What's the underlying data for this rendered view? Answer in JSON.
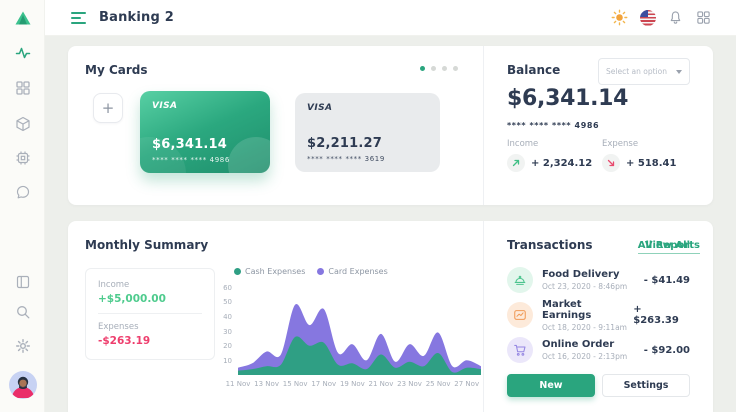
{
  "app": {
    "title": "Banking 2"
  },
  "header": {
    "icons": [
      "theme-sun-icon",
      "language-flag-us-icon",
      "notifications-bell-icon",
      "apps-grid-icon"
    ]
  },
  "sidebar": {
    "items": [
      "activity",
      "dashboard",
      "packages",
      "devices",
      "messages",
      "layout",
      "search",
      "settings",
      "profile-avatar"
    ],
    "active_item": "activity"
  },
  "my_cards": {
    "title": "My Cards",
    "pagination": {
      "count": 4,
      "active_index": 0
    },
    "add_card_label": "+",
    "cards": [
      {
        "brand": "VISA",
        "amount": "$6,341.14",
        "masked_number": "**** **** **** 4986",
        "variant": "green"
      },
      {
        "brand": "VISA",
        "amount": "$2,211.27",
        "masked_number": "**** **** **** 3619",
        "variant": "gray"
      }
    ]
  },
  "balance": {
    "title": "Balance",
    "select_placeholder": "Select an option",
    "amount": "$6,341.14",
    "masked_number": "**** **** **** 4986",
    "income": {
      "label": "Income",
      "value": "+ 2,324.12"
    },
    "expense": {
      "label": "Expense",
      "value": "+ 518.41"
    }
  },
  "monthly_summary": {
    "title": "Monthly Summary",
    "link_label": "All Reports",
    "income": {
      "label": "Income",
      "value": "+$5,000.00",
      "color": "#4ecb8d"
    },
    "expenses": {
      "label": "Expenses",
      "value": "-$263.19",
      "color": "#ee3e6d"
    }
  },
  "chart_data": {
    "type": "area",
    "stacked": true,
    "title": "Monthly Summary expenses by day",
    "x_tick_labels": [
      "11 Nov",
      "13 Nov",
      "15 Nov",
      "17 Nov",
      "19 Nov",
      "21 Nov",
      "23 Nov",
      "25 Nov",
      "27 Nov"
    ],
    "n_points": 18,
    "series": [
      {
        "name": "Cash Expenses",
        "color": "#2f9f84",
        "values": [
          3,
          4,
          6,
          7,
          26,
          20,
          22,
          7,
          8,
          4,
          14,
          5,
          9,
          6,
          15,
          2,
          5,
          4
        ]
      },
      {
        "name": "Card Expenses",
        "color": "#8677e0",
        "values": [
          2,
          4,
          10,
          7,
          22,
          14,
          23,
          8,
          13,
          6,
          14,
          4,
          12,
          7,
          14,
          4,
          5,
          2
        ]
      }
    ],
    "ylim": [
      0,
      60
    ],
    "yticks": [
      10,
      20,
      30,
      40,
      50,
      60
    ],
    "grid": false,
    "legend_position": "top"
  },
  "transactions": {
    "title": "Transactions",
    "link_label": "View All",
    "items": [
      {
        "icon": "food-cloche-icon",
        "name": "Food Delivery",
        "datetime": "Oct 23, 2020 - 8:46pm",
        "amount": "- $41.49",
        "icon_color": "#4cc48e",
        "icon_bg": "#e2f6ec"
      },
      {
        "icon": "earnings-chart-icon",
        "name": "Market Earnings",
        "datetime": "Oct 18, 2020 - 9:11am",
        "amount": "+ $263.39",
        "icon_color": "#f09a57",
        "icon_bg": "#fdeada"
      },
      {
        "icon": "shopping-cart-icon",
        "name": "Online Order",
        "datetime": "Oct 16, 2020 - 2:13pm",
        "amount": "- $92.00",
        "icon_color": "#9486e2",
        "icon_bg": "#ebe7fa"
      }
    ],
    "buttons": {
      "new_label": "New",
      "settings_label": "Settings"
    }
  },
  "colors": {
    "accent_green": "#2aa57e",
    "navy_text": "#2e3b52",
    "muted_text": "#a7aeb9",
    "page_bg": "#edefeb",
    "card_gradient": [
      "#58d0a4",
      "#1f8e6c"
    ],
    "positive": "#4ecb8d",
    "negative": "#ee3e6d"
  }
}
